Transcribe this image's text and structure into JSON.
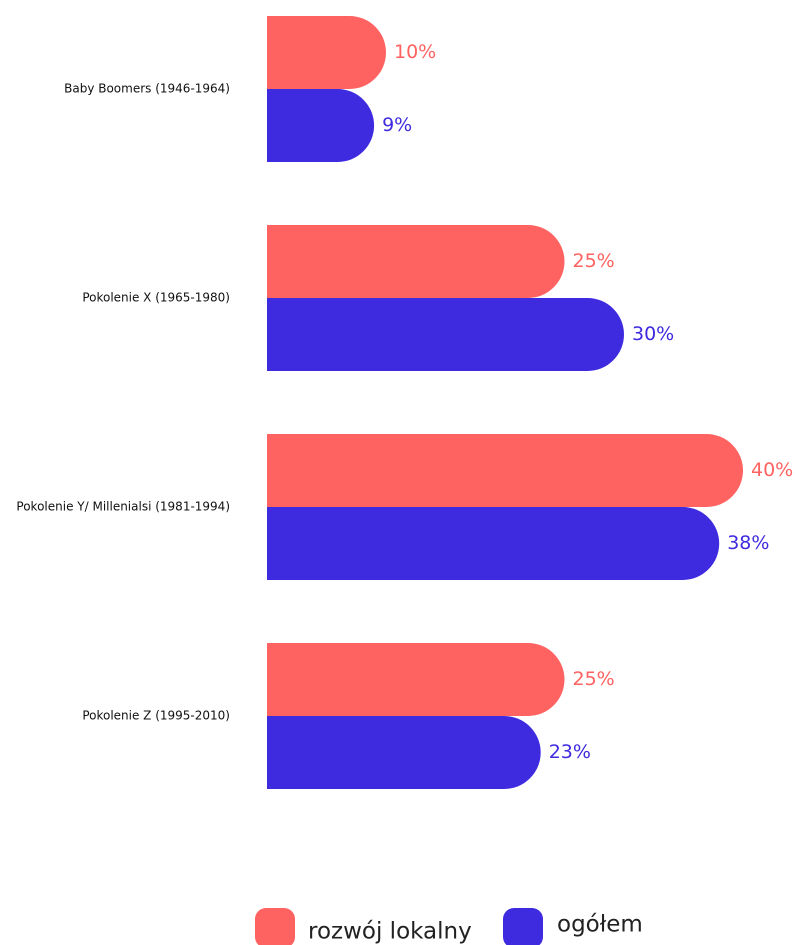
{
  "chart_data": {
    "type": "bar",
    "categories": [
      "Baby Boomers (1946-1964)",
      "Pokolenie X (1965-1980)",
      "Pokolenie Y/ Millenialsi (1981-1994)",
      "Pokolenie Z (1995-2010)"
    ],
    "series": [
      {
        "name": "rozwój lokalny",
        "color": "#FF6361",
        "values": [
          10,
          25,
          40,
          25
        ],
        "value_labels": [
          "10%",
          "25%",
          "40%",
          "25%"
        ]
      },
      {
        "name": "ogółem",
        "color": "#3F2BDF",
        "values": [
          9,
          30,
          38,
          23
        ],
        "value_labels": [
          "9%",
          "30%",
          "38%",
          "23%"
        ]
      }
    ],
    "orientation": "horizontal",
    "legend": "bottom"
  }
}
